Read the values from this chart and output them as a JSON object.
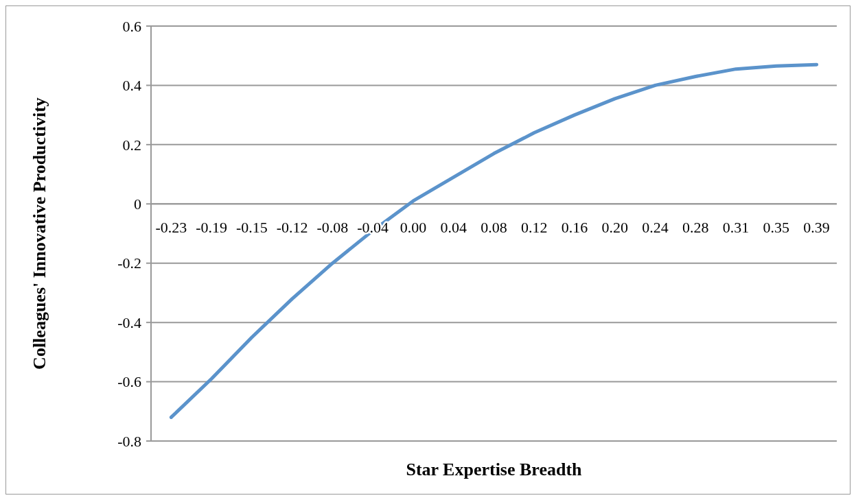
{
  "chart_data": {
    "type": "line",
    "xlabel": "Star Expertise Breadth",
    "ylabel": "Colleagues' Innovative Productivity",
    "categories": [
      "-0.23",
      "-0.19",
      "-0.15",
      "-0.12",
      "-0.08",
      "-0.04",
      "0.00",
      "0.04",
      "0.08",
      "0.12",
      "0.16",
      "0.20",
      "0.24",
      "0.28",
      "0.31",
      "0.35",
      "0.39"
    ],
    "series": [
      {
        "color": "#5b93cb",
        "values": [
          -0.72,
          -0.59,
          -0.45,
          -0.32,
          -0.2,
          -0.09,
          0.01,
          0.09,
          0.17,
          0.24,
          0.3,
          0.355,
          0.4,
          0.43,
          0.455,
          0.465,
          0.47
        ]
      }
    ],
    "ylim": [
      -0.8,
      0.6
    ],
    "yticks": [
      -0.8,
      -0.6,
      -0.4,
      -0.2,
      0,
      0.2,
      0.4,
      0.6
    ],
    "grid": "y",
    "marker": "none",
    "line_style": "solid"
  }
}
